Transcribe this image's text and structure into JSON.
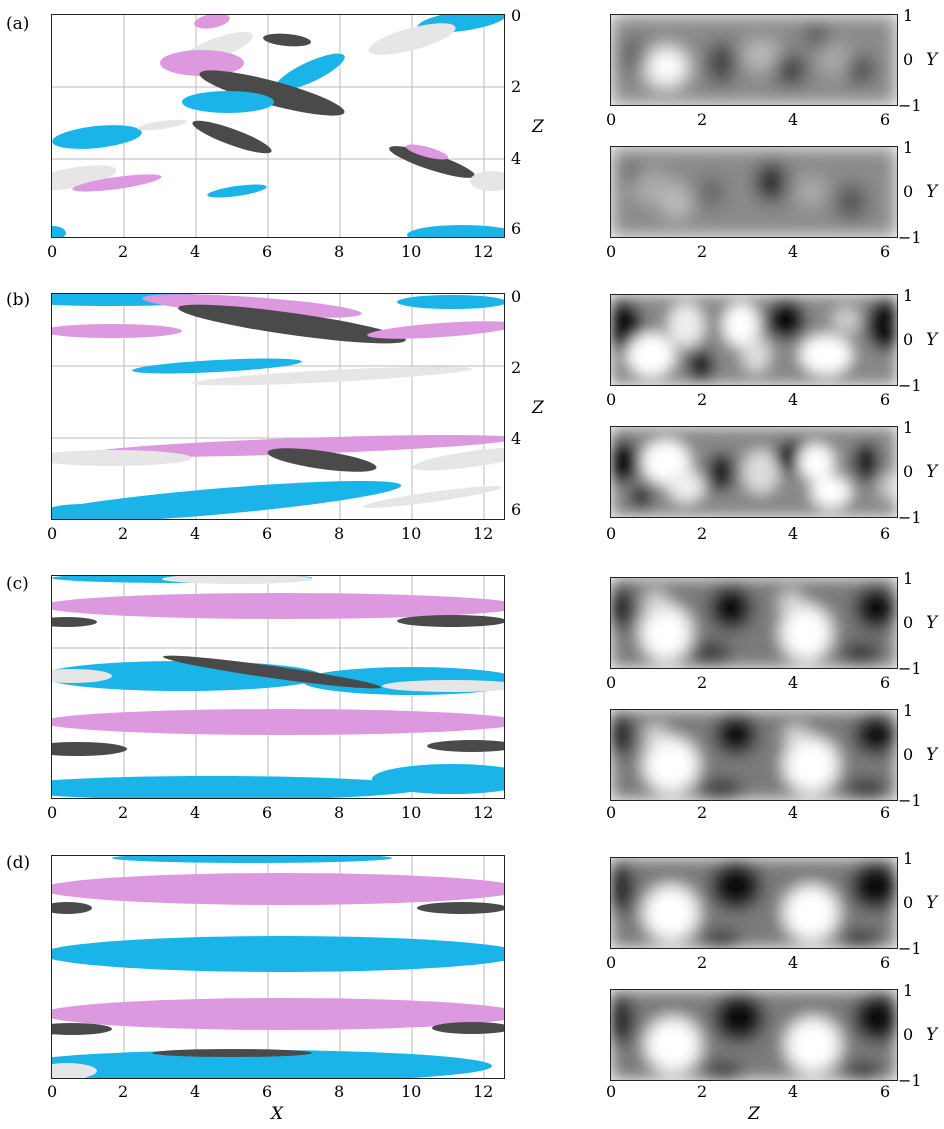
{
  "panels": [
    {
      "label": "(a)",
      "letter": "a"
    },
    {
      "label": "(b)",
      "letter": "b"
    },
    {
      "label": "(c)",
      "letter": "c"
    },
    {
      "label": "(d)",
      "letter": "d"
    }
  ],
  "axes": {
    "left_x_ticks": [
      "0",
      "2",
      "4",
      "6",
      "8",
      "10",
      "12"
    ],
    "left_z_ticks": [
      "0",
      "2",
      "4",
      "6"
    ],
    "right_z_ticks": [
      "0",
      "2",
      "4",
      "6"
    ],
    "right_y_ticks": [
      "1",
      "0",
      "−1"
    ],
    "xlabel": "X",
    "zlabel": "Z",
    "ylabel": "Y",
    "right_xlabel": "Z"
  },
  "colors": {
    "cyan": "#1ab4e8",
    "pink": "#dd99e0",
    "dark": "#4a4a4a",
    "white": "#e6e6e6"
  }
}
